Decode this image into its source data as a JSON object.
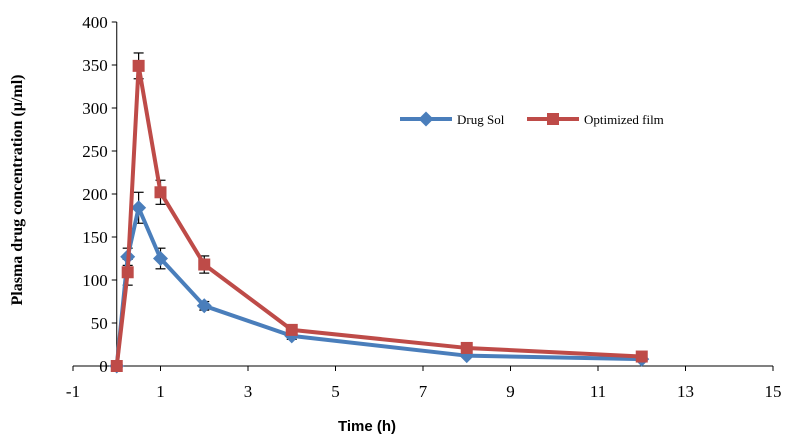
{
  "chart_data": {
    "type": "line",
    "title": "",
    "xlabel": "Time (h)",
    "ylabel": "Plasma drug concentration (µ/ml)",
    "xlim": [
      -1,
      15
    ],
    "ylim": [
      0,
      400
    ],
    "xticks": [
      -1,
      1,
      3,
      5,
      7,
      9,
      11,
      13,
      15
    ],
    "yticks": [
      0,
      50,
      100,
      150,
      200,
      250,
      300,
      350,
      400
    ],
    "x_tick_labels": [
      "-1",
      "1",
      "3",
      "5",
      "7",
      "9",
      "11",
      "13",
      "15"
    ],
    "y_tick_labels": [
      "0",
      "50",
      "100",
      "150",
      "200",
      "250",
      "300",
      "350",
      "400"
    ],
    "grid": false,
    "legend_position": "top-right",
    "series": [
      {
        "name": "Drug Sol",
        "color": "#4a7ebb",
        "marker": "diamond",
        "x": [
          0,
          0.25,
          0.5,
          1,
          2,
          4,
          8,
          12
        ],
        "y": [
          0,
          127,
          184,
          125,
          70,
          35,
          12,
          8
        ],
        "error": [
          0,
          10,
          18,
          12,
          5,
          4,
          2,
          1
        ]
      },
      {
        "name": "Optimized film",
        "color": "#be4b48",
        "marker": "square",
        "x": [
          0,
          0.25,
          0.5,
          1,
          2,
          4,
          8,
          12
        ],
        "y": [
          0,
          109,
          349,
          202,
          118,
          42,
          21,
          11
        ],
        "error": [
          0,
          15,
          15,
          14,
          10,
          4,
          2,
          1
        ]
      }
    ]
  }
}
